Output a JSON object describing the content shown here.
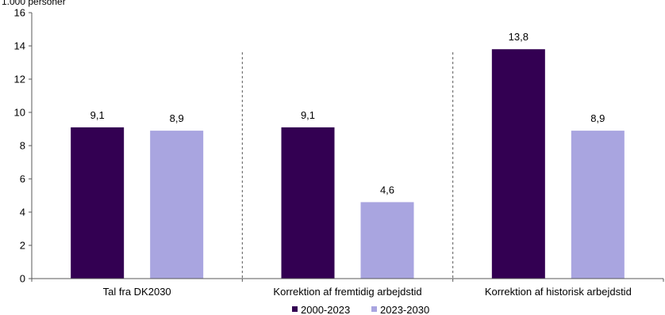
{
  "chart_data": {
    "type": "bar",
    "ylabel": "1.000 personer",
    "ylim": [
      0,
      16
    ],
    "yticks": [
      0,
      2,
      4,
      6,
      8,
      10,
      12,
      14,
      16
    ],
    "grid": false,
    "legend_position": "bottom",
    "value_format": "comma-decimal",
    "categories": [
      "Tal fra DK2030",
      "Korrektion af fremtidig arbejdstid",
      "Korrektion af historisk arbejdstid"
    ],
    "series": [
      {
        "name": "2000-2023",
        "color": "#330052",
        "values": [
          9.1,
          9.1,
          13.8
        ],
        "labels": [
          "9,1",
          "9,1",
          "13,8"
        ]
      },
      {
        "name": "2023-2030",
        "color": "#a9a5e0",
        "values": [
          8.9,
          4.6,
          8.9
        ],
        "labels": [
          "8,9",
          "4,6",
          "8,9"
        ]
      }
    ],
    "separators": "dashed vertical lines between categories"
  }
}
